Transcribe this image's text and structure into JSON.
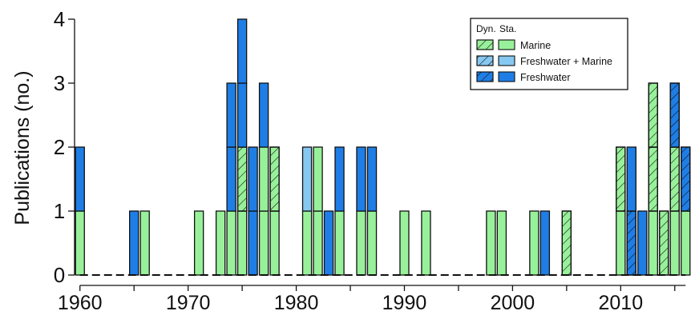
{
  "chart_data": {
    "type": "bar",
    "stacked": true,
    "ylabel": "Publications (no.)",
    "xlabel": "",
    "xlim": [
      1959.5,
      2016.5
    ],
    "ylim": [
      0,
      4
    ],
    "x_ticks": [
      1960,
      1970,
      1980,
      1990,
      2000,
      2010
    ],
    "y_ticks": [
      0,
      1,
      2,
      3,
      4
    ],
    "grid": false,
    "zero_baseline": "dashed",
    "legend": {
      "placement": "top-right",
      "headers": [
        "Dyn.",
        "Sta."
      ],
      "entries": [
        {
          "label": "Marine",
          "color": "#98F19A"
        },
        {
          "label": "Freshwater + Marine",
          "color": "#86C8F2"
        },
        {
          "label": "Freshwater",
          "color": "#1E7EE6"
        }
      ],
      "hatch_note": "hatched = Dyn., solid = Sta."
    },
    "colors": {
      "marine": "#98F19A",
      "freshwater_marine": "#86C8F2",
      "freshwater": "#1E7EE6",
      "outline": "#111111"
    },
    "stacks": [
      {
        "year": 1960,
        "segments": [
          {
            "cat": "marine",
            "hatched": false
          },
          {
            "cat": "freshwater",
            "hatched": false
          }
        ]
      },
      {
        "year": 1965,
        "segments": [
          {
            "cat": "freshwater",
            "hatched": false
          }
        ]
      },
      {
        "year": 1966,
        "segments": [
          {
            "cat": "marine",
            "hatched": false
          }
        ]
      },
      {
        "year": 1971,
        "segments": [
          {
            "cat": "marine",
            "hatched": false
          }
        ]
      },
      {
        "year": 1973,
        "segments": [
          {
            "cat": "marine",
            "hatched": false
          }
        ]
      },
      {
        "year": 1974,
        "segments": [
          {
            "cat": "marine",
            "hatched": false
          },
          {
            "cat": "freshwater",
            "hatched": false
          },
          {
            "cat": "freshwater",
            "hatched": false
          }
        ]
      },
      {
        "year": 1975,
        "segments": [
          {
            "cat": "marine",
            "hatched": false
          },
          {
            "cat": "marine",
            "hatched": true
          },
          {
            "cat": "freshwater",
            "hatched": false
          },
          {
            "cat": "freshwater",
            "hatched": false
          }
        ]
      },
      {
        "year": 1976,
        "segments": [
          {
            "cat": "freshwater",
            "hatched": false
          },
          {
            "cat": "freshwater",
            "hatched": false
          }
        ]
      },
      {
        "year": 1977,
        "segments": [
          {
            "cat": "marine",
            "hatched": false
          },
          {
            "cat": "marine",
            "hatched": false
          },
          {
            "cat": "freshwater",
            "hatched": false
          }
        ]
      },
      {
        "year": 1978,
        "segments": [
          {
            "cat": "marine",
            "hatched": false
          },
          {
            "cat": "marine",
            "hatched": true
          }
        ]
      },
      {
        "year": 1981,
        "segments": [
          {
            "cat": "marine",
            "hatched": false
          },
          {
            "cat": "freshwater_marine",
            "hatched": false
          }
        ]
      },
      {
        "year": 1982,
        "segments": [
          {
            "cat": "marine",
            "hatched": false
          },
          {
            "cat": "marine",
            "hatched": false
          }
        ]
      },
      {
        "year": 1983,
        "segments": [
          {
            "cat": "freshwater",
            "hatched": false
          }
        ]
      },
      {
        "year": 1984,
        "segments": [
          {
            "cat": "marine",
            "hatched": false
          },
          {
            "cat": "freshwater",
            "hatched": false
          }
        ]
      },
      {
        "year": 1986,
        "segments": [
          {
            "cat": "marine",
            "hatched": false
          },
          {
            "cat": "freshwater",
            "hatched": false
          }
        ]
      },
      {
        "year": 1987,
        "segments": [
          {
            "cat": "marine",
            "hatched": false
          },
          {
            "cat": "freshwater",
            "hatched": false
          }
        ]
      },
      {
        "year": 1990,
        "segments": [
          {
            "cat": "marine",
            "hatched": false
          }
        ]
      },
      {
        "year": 1992,
        "segments": [
          {
            "cat": "marine",
            "hatched": false
          }
        ]
      },
      {
        "year": 1998,
        "segments": [
          {
            "cat": "marine",
            "hatched": false
          }
        ]
      },
      {
        "year": 1999,
        "segments": [
          {
            "cat": "marine",
            "hatched": false
          }
        ]
      },
      {
        "year": 2002,
        "segments": [
          {
            "cat": "marine",
            "hatched": false
          }
        ]
      },
      {
        "year": 2003,
        "segments": [
          {
            "cat": "freshwater",
            "hatched": false
          }
        ]
      },
      {
        "year": 2005,
        "segments": [
          {
            "cat": "marine",
            "hatched": true
          }
        ]
      },
      {
        "year": 2010,
        "segments": [
          {
            "cat": "marine",
            "hatched": false
          },
          {
            "cat": "marine",
            "hatched": true
          }
        ]
      },
      {
        "year": 2011,
        "segments": [
          {
            "cat": "freshwater",
            "hatched": true
          },
          {
            "cat": "freshwater",
            "hatched": false
          }
        ]
      },
      {
        "year": 2012,
        "segments": [
          {
            "cat": "freshwater",
            "hatched": false
          }
        ]
      },
      {
        "year": 2013,
        "segments": [
          {
            "cat": "marine",
            "hatched": false
          },
          {
            "cat": "marine",
            "hatched": true
          },
          {
            "cat": "marine",
            "hatched": true
          }
        ]
      },
      {
        "year": 2014,
        "segments": [
          {
            "cat": "marine",
            "hatched": true
          }
        ]
      },
      {
        "year": 2015,
        "segments": [
          {
            "cat": "marine",
            "hatched": false
          },
          {
            "cat": "marine",
            "hatched": true
          },
          {
            "cat": "freshwater",
            "hatched": true
          }
        ]
      },
      {
        "year": 2016,
        "segments": [
          {
            "cat": "marine",
            "hatched": false
          },
          {
            "cat": "freshwater",
            "hatched": true
          }
        ]
      }
    ]
  }
}
